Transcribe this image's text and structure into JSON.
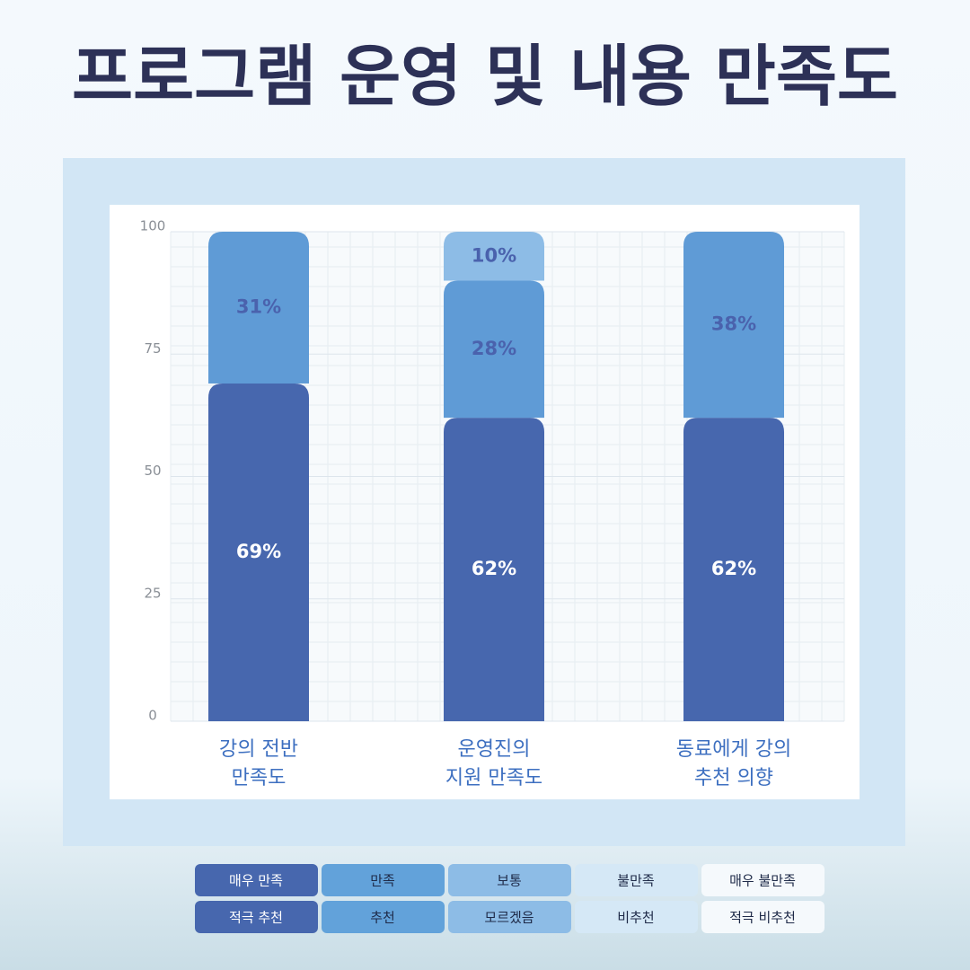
{
  "chart_data": {
    "type": "stacked_bar",
    "title": "프로그램 운영 및 내용 만족도",
    "categories": [
      [
        "강의 전반",
        "만족도"
      ],
      [
        "운영진의",
        "지원 만족도"
      ],
      [
        "동료에게  강의",
        "추천 의향"
      ]
    ],
    "series": [
      {
        "color": "#4767ae",
        "label_color": "#ffffff",
        "values": [
          69,
          62,
          62
        ],
        "value_labels": [
          "69%",
          "62%",
          "62%"
        ]
      },
      {
        "color": "#5f9bd6",
        "label_color": "#4a62ad",
        "values": [
          31,
          28,
          38
        ],
        "value_labels": [
          "31%",
          "28%",
          "38%"
        ]
      },
      {
        "color": "#8dbce6",
        "label_color": "#4a62ad",
        "values": [
          null,
          10,
          null
        ],
        "value_labels": [
          null,
          "10%",
          null
        ]
      }
    ],
    "ylim": [
      0,
      100
    ],
    "yticks": [
      0,
      25,
      50,
      75,
      100
    ],
    "grid": true,
    "legend": {
      "colors": [
        "#4767ae",
        "#62a2da",
        "#8dbce6",
        "#d5e8f6",
        "#f5f9fc"
      ],
      "text_colors": [
        "#ffffff",
        "#1e2a48",
        "#1e2a48",
        "#1e2a48",
        "#1e2a48"
      ],
      "rows": [
        [
          "매우 만족",
          "만족",
          "보통",
          "불만족",
          "매우 불만족"
        ],
        [
          "적극 추천",
          "추천",
          "모르겠음",
          "비추천",
          "적극 비추천"
        ]
      ]
    }
  }
}
